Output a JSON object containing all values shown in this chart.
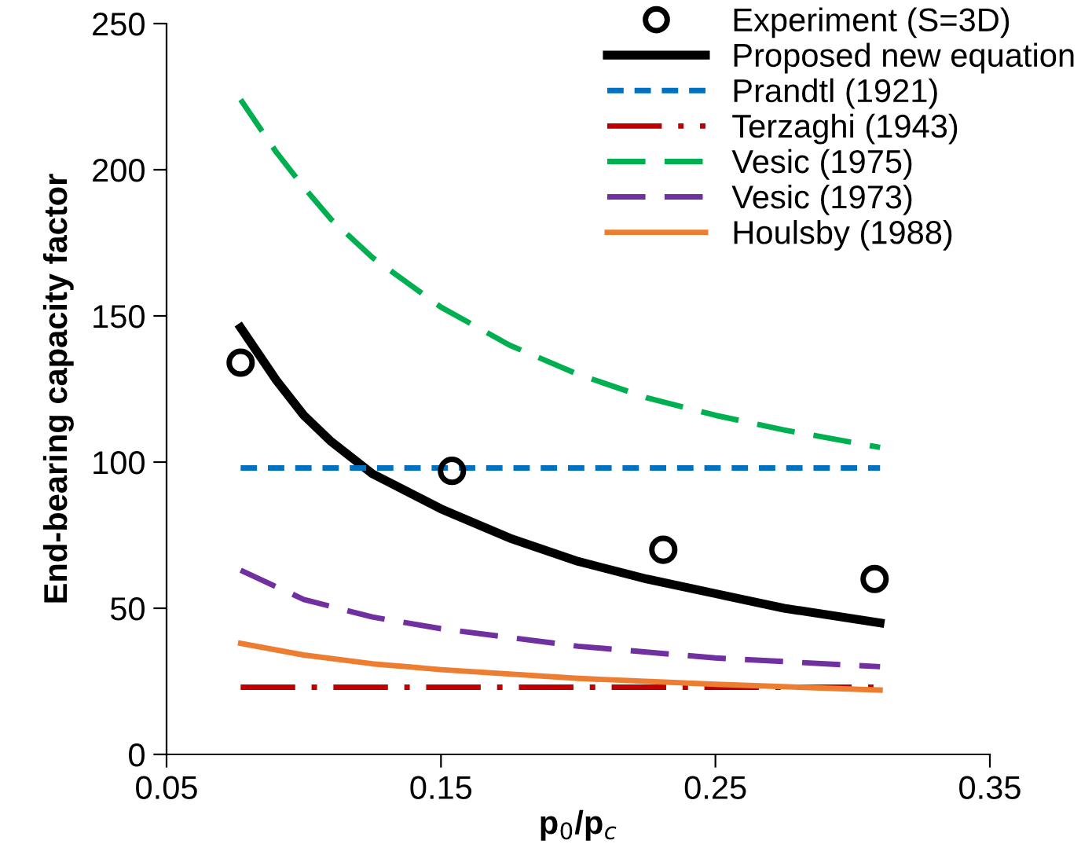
{
  "chart_data": {
    "type": "line",
    "xlabel": "p$_{0}$/p$_{c}$",
    "ylabel": "End-bearing capacity factor",
    "xlim": [
      0.05,
      0.35
    ],
    "xticks": [
      {
        "value": 0.05,
        "label": "0.05"
      },
      {
        "value": 0.15,
        "label": "0.15"
      },
      {
        "value": 0.25,
        "label": "0.25"
      },
      {
        "value": 0.35,
        "label": "0.35"
      }
    ],
    "ylim": [
      0,
      250
    ],
    "yticks": [
      0,
      50,
      100,
      150,
      200,
      250
    ],
    "grid": false,
    "legend": "top right",
    "series": [
      {
        "name": "Experiment (S=3D)",
        "type": "scatter",
        "marker": "circle",
        "color": "#000000",
        "x": [
          0.077,
          0.154,
          0.231,
          0.308
        ],
        "values": [
          134,
          97,
          70,
          60
        ]
      },
      {
        "name": "Proposed new equation",
        "color": "#000000",
        "line_style": "solid",
        "x": [
          0.077,
          0.09,
          0.1,
          0.11,
          0.125,
          0.15,
          0.175,
          0.2,
          0.225,
          0.25,
          0.275,
          0.31
        ],
        "values": [
          146,
          128,
          116,
          107,
          96,
          84,
          74,
          66,
          60,
          55,
          50,
          45
        ]
      },
      {
        "name": "Prandtl (1921)",
        "color": "#0070c0",
        "line_style": "dotted",
        "x": [
          0.077,
          0.31
        ],
        "values": [
          98,
          98
        ]
      },
      {
        "name": "Terzaghi (1943)",
        "color": "#c00000",
        "line_style": "dashdot",
        "x": [
          0.077,
          0.31
        ],
        "values": [
          23,
          23
        ]
      },
      {
        "name": "Vesic (1975)",
        "color": "#00b050",
        "line_style": "dashed",
        "x": [
          0.077,
          0.09,
          0.1,
          0.11,
          0.125,
          0.15,
          0.175,
          0.2,
          0.225,
          0.25,
          0.275,
          0.31
        ],
        "values": [
          224,
          206,
          194,
          183,
          170,
          153,
          140,
          130,
          122,
          116,
          111,
          105
        ]
      },
      {
        "name": "Vesic (1973)",
        "color": "#7030a0",
        "line_style": "dashed",
        "x": [
          0.077,
          0.1,
          0.125,
          0.15,
          0.175,
          0.2,
          0.25,
          0.31
        ],
        "values": [
          63,
          53,
          47,
          43,
          40,
          37,
          33,
          30
        ]
      },
      {
        "name": "Houlsby (1988)",
        "color": "#ed7d31",
        "line_style": "solid",
        "x": [
          0.077,
          0.1,
          0.125,
          0.15,
          0.2,
          0.25,
          0.31
        ],
        "values": [
          38,
          34,
          31,
          29,
          26,
          24,
          22
        ]
      }
    ]
  }
}
